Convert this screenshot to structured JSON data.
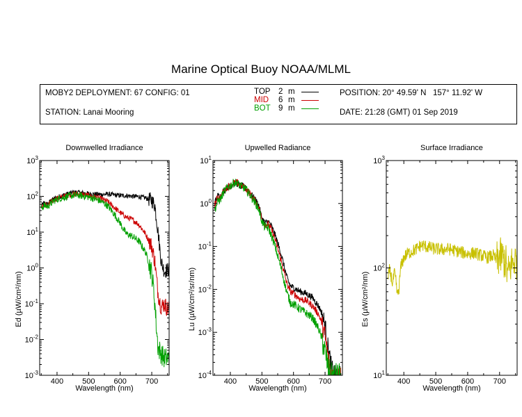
{
  "title": "Marine Optical Buoy NOAA/MLML",
  "info": {
    "deployment": "MOBY2 DEPLOYMENT: 67 CONFIG: 01",
    "station": "STATION: Lanai Mooring",
    "position": "POSITION: 20° 49.59' N   157° 11.92' W",
    "date": "DATE: 21:28 (GMT) 01 Sep 2019",
    "legend": [
      {
        "name": "TOP",
        "depth": "2",
        "unit": "m",
        "color": "#000000"
      },
      {
        "name": "MID",
        "depth": "6",
        "unit": "m",
        "color": "#cc0000"
      },
      {
        "name": "BOT",
        "depth": "9",
        "unit": "m",
        "color": "#00a000"
      }
    ]
  },
  "chart_data": [
    {
      "type": "line",
      "title": "Downwelled Irradiance",
      "xlabel": "Wavelength (nm)",
      "ylabel": "Ed  (µW/cm²/nm)",
      "xlim": [
        345,
        755
      ],
      "ylim": [
        0.001,
        1000
      ],
      "yscale": "log",
      "xticks": [
        400,
        500,
        600,
        700
      ],
      "yticks": [
        0.001,
        0.01,
        0.1,
        1,
        10,
        100,
        1000
      ],
      "ytick_labels": [
        [
          "10",
          "-3"
        ],
        [
          "10",
          "-2"
        ],
        [
          "10",
          "-1"
        ],
        [
          "10",
          "0"
        ],
        [
          "10",
          "1"
        ],
        [
          "10",
          "2"
        ],
        [
          "10",
          "3"
        ]
      ],
      "series": [
        {
          "name": "TOP",
          "color": "#000000",
          "noise": 0.07,
          "x": [
            350,
            360,
            370,
            380,
            390,
            400,
            410,
            420,
            430,
            440,
            450,
            460,
            470,
            480,
            490,
            500,
            520,
            540,
            560,
            580,
            600,
            620,
            640,
            660,
            680,
            700,
            710,
            720,
            730,
            740,
            750,
            755
          ],
          "y": [
            55,
            65,
            60,
            75,
            85,
            95,
            100,
            108,
            115,
            122,
            128,
            130,
            128,
            125,
            122,
            118,
            115,
            112,
            115,
            110,
            105,
            105,
            100,
            98,
            90,
            78,
            55,
            10,
            1.5,
            0.8,
            0.9,
            0.9
          ]
        },
        {
          "name": "MID",
          "color": "#cc0000",
          "noise": 0.08,
          "x": [
            350,
            360,
            370,
            380,
            390,
            400,
            410,
            420,
            430,
            440,
            450,
            460,
            470,
            480,
            490,
            500,
            520,
            540,
            560,
            580,
            600,
            620,
            640,
            660,
            680,
            700,
            710,
            715,
            720,
            725,
            730,
            740,
            750,
            755
          ],
          "y": [
            50,
            58,
            55,
            68,
            80,
            88,
            92,
            98,
            105,
            110,
            115,
            116,
            115,
            112,
            108,
            103,
            95,
            85,
            72,
            50,
            35,
            26,
            22,
            16,
            9,
            4,
            1.5,
            0.5,
            0.2,
            0.12,
            0.08,
            0.1,
            0.07,
            0.08
          ]
        },
        {
          "name": "BOT",
          "color": "#00a000",
          "noise": 0.1,
          "x": [
            350,
            360,
            370,
            380,
            390,
            400,
            410,
            420,
            430,
            440,
            450,
            460,
            470,
            480,
            490,
            500,
            520,
            540,
            560,
            580,
            600,
            610,
            620,
            640,
            660,
            680,
            690,
            700,
            705,
            710,
            715,
            720,
            730,
            740,
            750,
            755
          ],
          "y": [
            48,
            55,
            52,
            62,
            75,
            82,
            88,
            92,
            98,
            103,
            106,
            107,
            106,
            103,
            100,
            95,
            85,
            72,
            55,
            33,
            18,
            12,
            9,
            7.5,
            5.5,
            2.8,
            1.5,
            0.7,
            0.3,
            0.1,
            0.02,
            0.006,
            0.004,
            0.003,
            0.003,
            0.003
          ]
        }
      ]
    },
    {
      "type": "line",
      "title": "Upwelled Radiance",
      "xlabel": "Wavelength (nm)",
      "ylabel": "Lu  (µW/cm²/sr/nm)",
      "xlim": [
        345,
        755
      ],
      "ylim": [
        0.0001,
        10
      ],
      "yscale": "log",
      "xticks": [
        400,
        500,
        600,
        700
      ],
      "yticks": [
        0.0001,
        0.001,
        0.01,
        0.1,
        1,
        10
      ],
      "ytick_labels": [
        [
          "10",
          "-4"
        ],
        [
          "10",
          "-3"
        ],
        [
          "10",
          "-2"
        ],
        [
          "10",
          "-1"
        ],
        [
          "10",
          "0"
        ],
        [
          "10",
          "1"
        ]
      ],
      "series": [
        {
          "name": "TOP",
          "color": "#000000",
          "noise": 0.08,
          "x": [
            350,
            360,
            370,
            380,
            390,
            400,
            410,
            420,
            430,
            440,
            450,
            460,
            470,
            480,
            490,
            500,
            510,
            520,
            530,
            540,
            550,
            560,
            570,
            580,
            590,
            600,
            610,
            620,
            640,
            660,
            680,
            690,
            700,
            710,
            720,
            730,
            740,
            750
          ],
          "y": [
            1.0,
            1.5,
            1.5,
            2.0,
            2.4,
            2.5,
            3.0,
            3.0,
            2.6,
            2.5,
            2.2,
            1.8,
            1.5,
            1.2,
            0.9,
            0.45,
            0.35,
            0.38,
            0.3,
            0.2,
            0.12,
            0.07,
            0.035,
            0.018,
            0.012,
            0.011,
            0.01,
            0.009,
            0.008,
            0.0065,
            0.004,
            0.0028,
            0.0014,
            0.0004,
            0.00015,
            0.0001,
            0.0001,
            0.0001
          ]
        },
        {
          "name": "MID",
          "color": "#cc0000",
          "noise": 0.08,
          "x": [
            350,
            360,
            370,
            380,
            390,
            400,
            410,
            420,
            430,
            440,
            450,
            460,
            470,
            480,
            490,
            500,
            510,
            520,
            530,
            540,
            550,
            560,
            570,
            580,
            590,
            600,
            610,
            620,
            640,
            660,
            680,
            690,
            700,
            710,
            720,
            730,
            740,
            750
          ],
          "y": [
            0.9,
            1.4,
            1.4,
            2.0,
            2.4,
            2.6,
            3.0,
            3.1,
            2.7,
            2.5,
            2.2,
            1.8,
            1.4,
            1.1,
            0.85,
            0.42,
            0.32,
            0.33,
            0.25,
            0.16,
            0.09,
            0.05,
            0.025,
            0.013,
            0.009,
            0.008,
            0.007,
            0.006,
            0.0055,
            0.0042,
            0.0026,
            0.0016,
            0.0008,
            0.00025,
            0.0001,
            0.0001,
            0.0001,
            0.0001
          ]
        },
        {
          "name": "BOT",
          "color": "#00a000",
          "noise": 0.1,
          "x": [
            350,
            360,
            370,
            380,
            390,
            400,
            410,
            420,
            430,
            440,
            450,
            460,
            470,
            480,
            490,
            500,
            510,
            520,
            530,
            540,
            550,
            560,
            570,
            580,
            590,
            600,
            610,
            620,
            640,
            660,
            680,
            690,
            700,
            710,
            720,
            730,
            740,
            750
          ],
          "y": [
            0.7,
            1.1,
            1.3,
            1.9,
            2.3,
            2.6,
            3.0,
            3.1,
            2.6,
            2.4,
            2.1,
            1.7,
            1.3,
            1.0,
            0.75,
            0.38,
            0.28,
            0.27,
            0.18,
            0.11,
            0.06,
            0.033,
            0.016,
            0.008,
            0.005,
            0.0045,
            0.004,
            0.0035,
            0.0028,
            0.0022,
            0.0012,
            0.0007,
            0.00035,
            0.00015,
            0.0001,
            0.0001,
            0.0001,
            0.0001
          ]
        }
      ]
    },
    {
      "type": "line",
      "title": "Surface Irradiance",
      "xlabel": "Wavelength (nm)",
      "ylabel": "Es  (µW/cm²/nm)",
      "xlim": [
        345,
        755
      ],
      "ylim": [
        10,
        1000
      ],
      "yscale": "log",
      "xticks": [
        400,
        500,
        600,
        700
      ],
      "yticks": [
        10,
        100,
        1000
      ],
      "ytick_labels": [
        [
          "10",
          "1"
        ],
        [
          "10",
          "2"
        ],
        [
          "10",
          "3"
        ]
      ],
      "series": [
        {
          "name": "",
          "color": "#c8c000",
          "noise": 0.06,
          "x": [
            350,
            355,
            360,
            365,
            370,
            375,
            380,
            385,
            390,
            400,
            410,
            420,
            430,
            440,
            450,
            460,
            470,
            480,
            490,
            500,
            520,
            540,
            560,
            580,
            600,
            620,
            640,
            660,
            680,
            690,
            700,
            710,
            720,
            725,
            730,
            735,
            740,
            750,
            755
          ],
          "y": [
            75,
            95,
            85,
            70,
            90,
            75,
            55,
            65,
            100,
            125,
            135,
            140,
            145,
            150,
            160,
            162,
            158,
            155,
            152,
            150,
            148,
            150,
            145,
            140,
            135,
            138,
            132,
            125,
            130,
            118,
            128,
            125,
            110,
            85,
            95,
            105,
            112,
            118,
            115
          ]
        }
      ]
    }
  ]
}
